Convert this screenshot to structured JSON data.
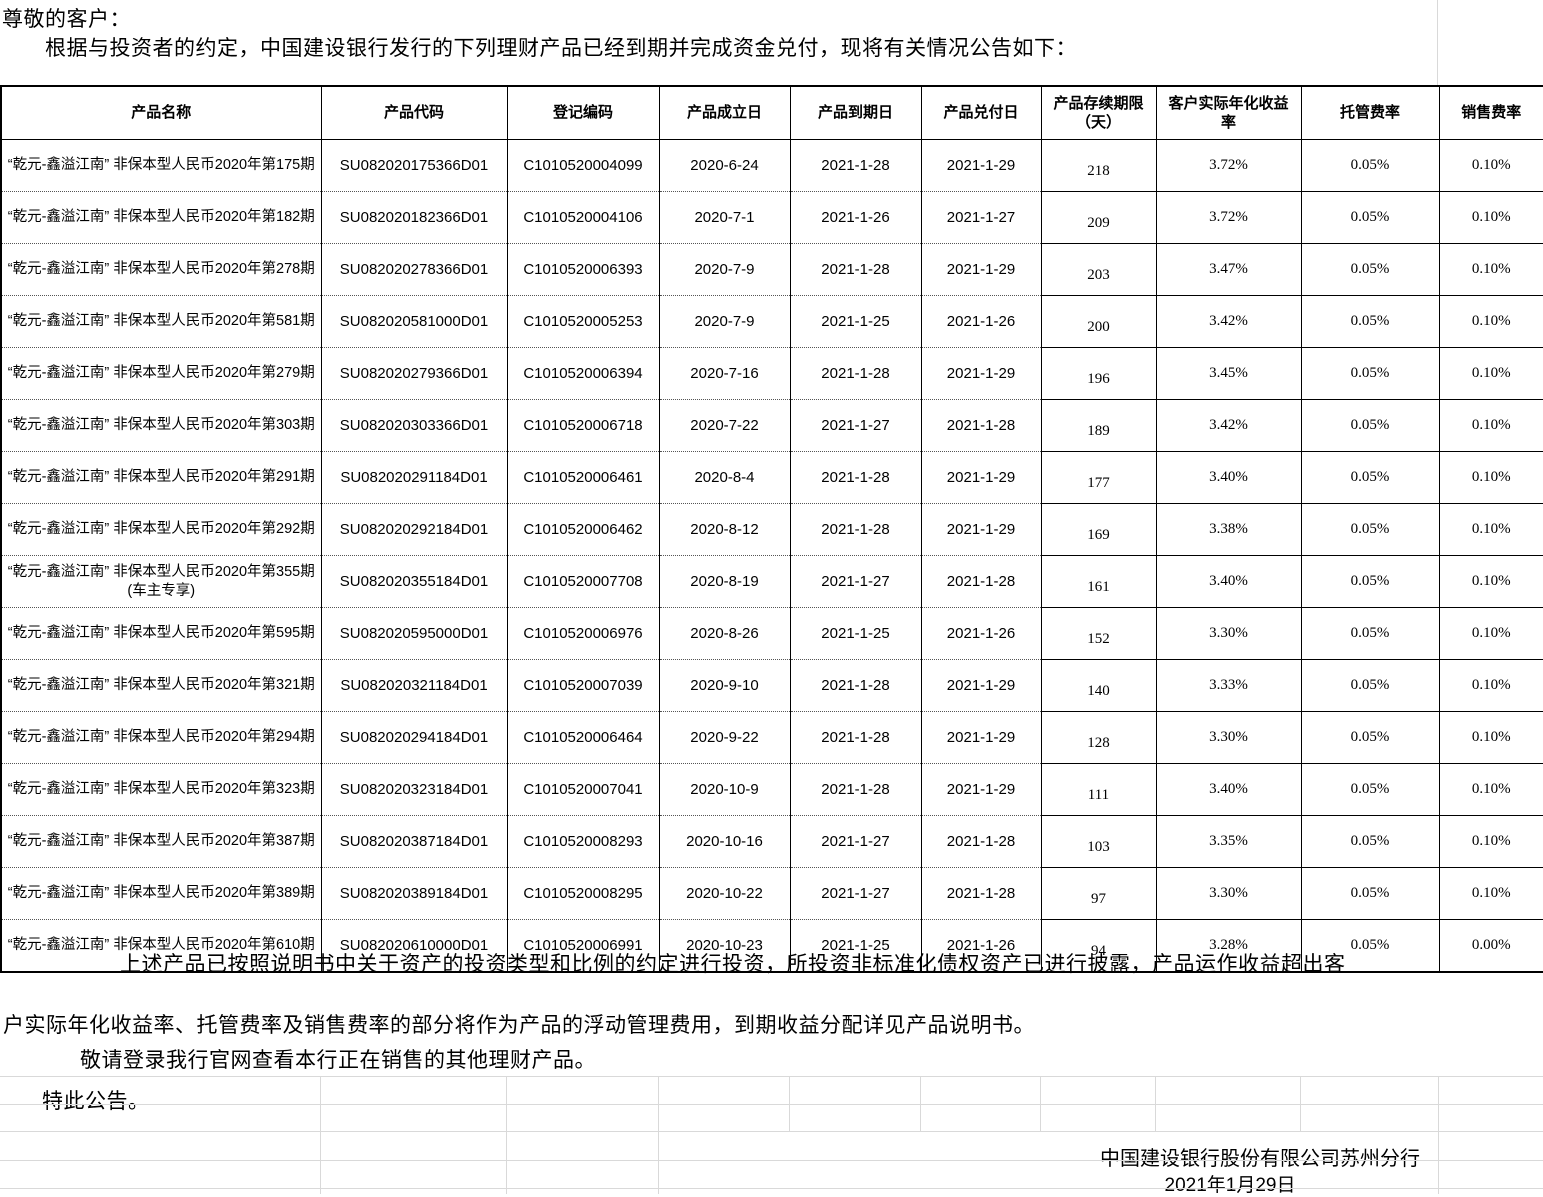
{
  "intro": {
    "salutation": "尊敬的客户：",
    "body": "根据与投资者的约定，中国建设银行发行的下列理财产品已经到期并完成资金兑付，现将有关情况公告如下："
  },
  "table": {
    "headers": [
      "产品名称",
      "产品代码",
      "登记编码",
      "产品成立日",
      "产品到期日",
      "产品兑付日",
      "产品存续期限（天）",
      "客户实际年化收益率",
      "托管费率",
      "销售费率"
    ],
    "rows": [
      [
        "“乾元-鑫溢江南” 非保本型人民币2020年第175期",
        "SU082020175366D01",
        "C1010520004099",
        "2020-6-24",
        "2021-1-28",
        "2021-1-29",
        "218",
        "3.72%",
        "0.05%",
        "0.10%"
      ],
      [
        "“乾元-鑫溢江南” 非保本型人民币2020年第182期",
        "SU082020182366D01",
        "C1010520004106",
        "2020-7-1",
        "2021-1-26",
        "2021-1-27",
        "209",
        "3.72%",
        "0.05%",
        "0.10%"
      ],
      [
        "“乾元-鑫溢江南” 非保本型人民币2020年第278期",
        "SU082020278366D01",
        "C1010520006393",
        "2020-7-9",
        "2021-1-28",
        "2021-1-29",
        "203",
        "3.47%",
        "0.05%",
        "0.10%"
      ],
      [
        "“乾元-鑫溢江南” 非保本型人民币2020年第581期",
        "SU082020581000D01",
        "C1010520005253",
        "2020-7-9",
        "2021-1-25",
        "2021-1-26",
        "200",
        "3.42%",
        "0.05%",
        "0.10%"
      ],
      [
        "“乾元-鑫溢江南” 非保本型人民币2020年第279期",
        "SU082020279366D01",
        "C1010520006394",
        "2020-7-16",
        "2021-1-28",
        "2021-1-29",
        "196",
        "3.45%",
        "0.05%",
        "0.10%"
      ],
      [
        "“乾元-鑫溢江南” 非保本型人民币2020年第303期",
        "SU082020303366D01",
        "C1010520006718",
        "2020-7-22",
        "2021-1-27",
        "2021-1-28",
        "189",
        "3.42%",
        "0.05%",
        "0.10%"
      ],
      [
        "“乾元-鑫溢江南” 非保本型人民币2020年第291期",
        "SU082020291184D01",
        "C1010520006461",
        "2020-8-4",
        "2021-1-28",
        "2021-1-29",
        "177",
        "3.40%",
        "0.05%",
        "0.10%"
      ],
      [
        "“乾元-鑫溢江南” 非保本型人民币2020年第292期",
        "SU082020292184D01",
        "C1010520006462",
        "2020-8-12",
        "2021-1-28",
        "2021-1-29",
        "169",
        "3.38%",
        "0.05%",
        "0.10%"
      ],
      [
        "“乾元-鑫溢江南” 非保本型人民币2020年第355期(车主专享)",
        "SU082020355184D01",
        "C1010520007708",
        "2020-8-19",
        "2021-1-27",
        "2021-1-28",
        "161",
        "3.40%",
        "0.05%",
        "0.10%"
      ],
      [
        "“乾元-鑫溢江南” 非保本型人民币2020年第595期",
        "SU082020595000D01",
        "C1010520006976",
        "2020-8-26",
        "2021-1-25",
        "2021-1-26",
        "152",
        "3.30%",
        "0.05%",
        "0.10%"
      ],
      [
        "“乾元-鑫溢江南” 非保本型人民币2020年第321期",
        "SU082020321184D01",
        "C1010520007039",
        "2020-9-10",
        "2021-1-28",
        "2021-1-29",
        "140",
        "3.33%",
        "0.05%",
        "0.10%"
      ],
      [
        "“乾元-鑫溢江南” 非保本型人民币2020年第294期",
        "SU082020294184D01",
        "C1010520006464",
        "2020-9-22",
        "2021-1-28",
        "2021-1-29",
        "128",
        "3.30%",
        "0.05%",
        "0.10%"
      ],
      [
        "“乾元-鑫溢江南” 非保本型人民币2020年第323期",
        "SU082020323184D01",
        "C1010520007041",
        "2020-10-9",
        "2021-1-28",
        "2021-1-29",
        "111",
        "3.40%",
        "0.05%",
        "0.10%"
      ],
      [
        "“乾元-鑫溢江南” 非保本型人民币2020年第387期",
        "SU082020387184D01",
        "C1010520008293",
        "2020-10-16",
        "2021-1-27",
        "2021-1-28",
        "103",
        "3.35%",
        "0.05%",
        "0.10%"
      ],
      [
        "“乾元-鑫溢江南” 非保本型人民币2020年第389期",
        "SU082020389184D01",
        "C1010520008295",
        "2020-10-22",
        "2021-1-27",
        "2021-1-28",
        "97",
        "3.30%",
        "0.05%",
        "0.10%"
      ],
      [
        "“乾元-鑫溢江南” 非保本型人民币2020年第610期",
        "SU082020610000D01",
        "C1010520006991",
        "2020-10-23",
        "2021-1-25",
        "2021-1-26",
        "94",
        "3.28%",
        "0.05%",
        "0.00%"
      ]
    ]
  },
  "notes": {
    "line1": "上述产品已按照说明书中关于资产的投资类型和比例的约定进行投资，所投资非标准化债权资产已进行披露，产品运作收益超出客",
    "line2": "户实际年化收益率、托管费率及销售费率的部分将作为产品的浮动管理费用，到期收益分配详见产品说明书。",
    "line3": "敬请登录我行官网查看本行正在销售的其他理财产品。",
    "line4": "特此公告。"
  },
  "signature": {
    "issuer": "中国建设银行股份有限公司苏州分行",
    "date": "2021年1月29日"
  }
}
